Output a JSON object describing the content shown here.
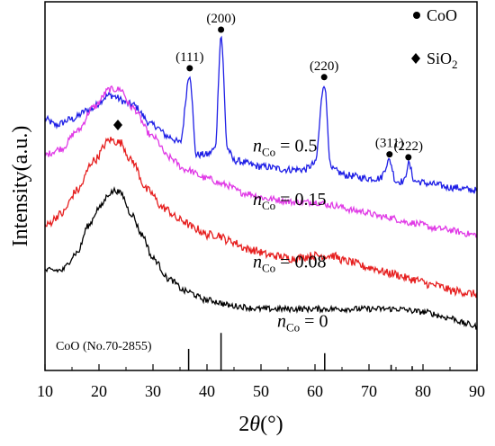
{
  "chart_data": {
    "type": "line",
    "xlabel": "2θ(°)",
    "ylabel": "Intensity(a.u.)",
    "xlim": [
      10,
      90
    ],
    "xticks": [
      10,
      20,
      30,
      40,
      50,
      60,
      70,
      80,
      90
    ],
    "xticks_text": [
      "10",
      "20",
      "30",
      "40",
      "50",
      "60",
      "70",
      "80",
      "90"
    ],
    "grid": false,
    "legend_position": "top-right",
    "legend": [
      {
        "marker": "circle",
        "label": "CoO"
      },
      {
        "marker": "diamond",
        "label": "SiO",
        "subscript": "2"
      }
    ],
    "series": [
      {
        "var": "n",
        "sub": "Co",
        "rel": " = 0.5",
        "color": "#1f1fe6",
        "anchors": [
          [
            10,
            0.72
          ],
          [
            12,
            0.7
          ],
          [
            15,
            0.72
          ],
          [
            18,
            0.75
          ],
          [
            22,
            0.8
          ],
          [
            26,
            0.77
          ],
          [
            30,
            0.7
          ],
          [
            33,
            0.66
          ],
          [
            35,
            0.64
          ],
          [
            36.8,
            0.87
          ],
          [
            38,
            0.6
          ],
          [
            40,
            0.6
          ],
          [
            41.5,
            0.62
          ],
          [
            42.6,
            1.0
          ],
          [
            43.8,
            0.62
          ],
          [
            45,
            0.58
          ],
          [
            50,
            0.56
          ],
          [
            55,
            0.55
          ],
          [
            58,
            0.55
          ],
          [
            60,
            0.57
          ],
          [
            61.7,
            0.84
          ],
          [
            63,
            0.55
          ],
          [
            66,
            0.53
          ],
          [
            70,
            0.52
          ],
          [
            72,
            0.52
          ],
          [
            73.8,
            0.58
          ],
          [
            75,
            0.51
          ],
          [
            76.5,
            0.51
          ],
          [
            77.3,
            0.57
          ],
          [
            78.5,
            0.51
          ],
          [
            82,
            0.5
          ],
          [
            85,
            0.49
          ],
          [
            90,
            0.48
          ]
        ]
      },
      {
        "var": "n",
        "sub": "Co",
        "rel": " = 0.15",
        "color": "#e03ae6",
        "anchors": [
          [
            10,
            0.6
          ],
          [
            13,
            0.62
          ],
          [
            16,
            0.68
          ],
          [
            19,
            0.76
          ],
          [
            22,
            0.82
          ],
          [
            24,
            0.82
          ],
          [
            26,
            0.76
          ],
          [
            30,
            0.66
          ],
          [
            33,
            0.59
          ],
          [
            36,
            0.55
          ],
          [
            40,
            0.52
          ],
          [
            43,
            0.5
          ],
          [
            47,
            0.47
          ],
          [
            52,
            0.45
          ],
          [
            56,
            0.44
          ],
          [
            60,
            0.44
          ],
          [
            63,
            0.43
          ],
          [
            68,
            0.41
          ],
          [
            73,
            0.39
          ],
          [
            78,
            0.37
          ],
          [
            83,
            0.35
          ],
          [
            90,
            0.33
          ]
        ]
      },
      {
        "var": "n",
        "sub": "Co",
        "rel": " = 0.08",
        "color": "#e61f1f",
        "anchors": [
          [
            10,
            0.36
          ],
          [
            13,
            0.4
          ],
          [
            16,
            0.48
          ],
          [
            19,
            0.58
          ],
          [
            22,
            0.65
          ],
          [
            24,
            0.64
          ],
          [
            26,
            0.58
          ],
          [
            29,
            0.48
          ],
          [
            32,
            0.42
          ],
          [
            35,
            0.38
          ],
          [
            38,
            0.35
          ],
          [
            40,
            0.33
          ],
          [
            42,
            0.33
          ],
          [
            44,
            0.31
          ],
          [
            48,
            0.28
          ],
          [
            52,
            0.26
          ],
          [
            56,
            0.25
          ],
          [
            60,
            0.26
          ],
          [
            63,
            0.26
          ],
          [
            66,
            0.24
          ],
          [
            70,
            0.22
          ],
          [
            74,
            0.2
          ],
          [
            78,
            0.18
          ],
          [
            82,
            0.16
          ],
          [
            86,
            0.14
          ],
          [
            90,
            0.13
          ]
        ]
      },
      {
        "var": "n",
        "sub": "Co",
        "rel": " = 0",
        "color": "#000000",
        "anchors": [
          [
            10,
            0.21
          ],
          [
            13,
            0.21
          ],
          [
            16,
            0.27
          ],
          [
            18,
            0.36
          ],
          [
            20,
            0.42
          ],
          [
            22,
            0.47
          ],
          [
            23,
            0.48
          ],
          [
            24,
            0.47
          ],
          [
            26,
            0.4
          ],
          [
            28,
            0.33
          ],
          [
            30,
            0.25
          ],
          [
            33,
            0.18
          ],
          [
            36,
            0.14
          ],
          [
            40,
            0.11
          ],
          [
            45,
            0.09
          ],
          [
            50,
            0.08
          ],
          [
            55,
            0.08
          ],
          [
            60,
            0.08
          ],
          [
            65,
            0.08
          ],
          [
            70,
            0.08
          ],
          [
            75,
            0.08
          ],
          [
            80,
            0.07
          ],
          [
            85,
            0.05
          ],
          [
            88,
            0.03
          ],
          [
            90,
            0.02
          ]
        ]
      }
    ],
    "series_label_x": [
      48.5,
      48.5,
      48.5,
      53
    ],
    "series_label_y": [
      0.61,
      0.43,
      0.22,
      0.02
    ],
    "peaks": [
      {
        "label": "(111)",
        "x": 36.8,
        "y": 0.87
      },
      {
        "label": "(200)",
        "x": 42.6,
        "y": 1.0
      },
      {
        "label": "(220)",
        "x": 61.7,
        "y": 0.84
      },
      {
        "label": "(311)",
        "x": 73.8,
        "y": 0.58
      },
      {
        "label": "(222)",
        "x": 77.3,
        "y": 0.57
      }
    ],
    "sio2_marker": {
      "x": 23.5,
      "y": 0.7
    },
    "reference": {
      "label": "CoO (No.70-2855)",
      "lines": [
        {
          "x": 36.6,
          "h": 0.5
        },
        {
          "x": 42.6,
          "h": 0.87
        },
        {
          "x": 61.8,
          "h": 0.4
        },
        {
          "x": 74.1,
          "h": 0.13
        },
        {
          "x": 78.0,
          "h": 0.1
        }
      ]
    }
  }
}
